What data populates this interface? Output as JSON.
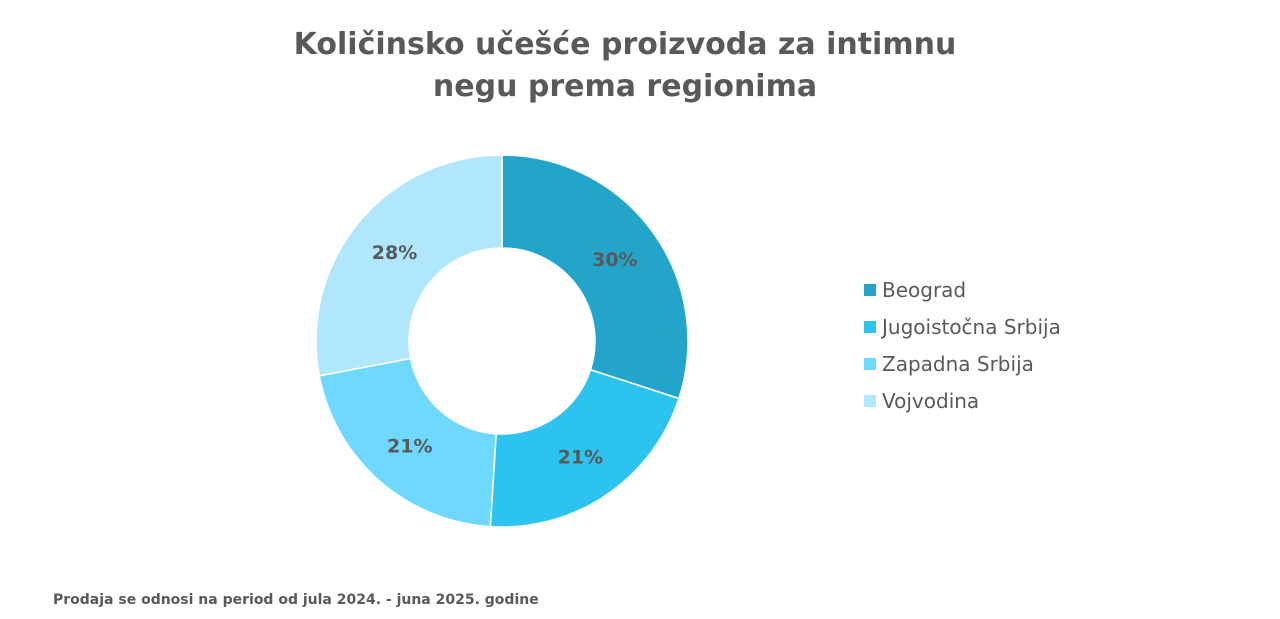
{
  "chart_data": {
    "type": "pie",
    "donut": true,
    "title_lines": [
      "Količinsko učešće proizvoda za intimnu",
      "negu prema regionima"
    ],
    "categories": [
      "Beograd",
      "Jugoistočna Srbija",
      "Zapadna Srbija",
      "Vojvodina"
    ],
    "values": [
      30,
      21,
      21,
      28
    ],
    "labels": [
      "30%",
      "21%",
      "21%",
      "28%"
    ],
    "colors": [
      "#23A5CB",
      "#2CC3EE",
      "#6ED8FF",
      "#B0E7FD"
    ],
    "legend_position": "right"
  },
  "footer": "Prodaja se odnosi na period od jula 2024.  - juna 2025. godine"
}
